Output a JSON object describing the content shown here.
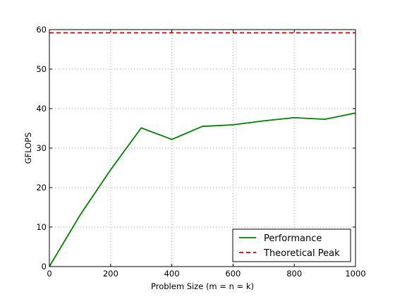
{
  "chart_data": {
    "type": "line",
    "title": "",
    "xlabel": "Problem Size (m = n = k)",
    "ylabel": "GFLOPS",
    "xlim": [
      0,
      1000
    ],
    "ylim": [
      0,
      60
    ],
    "xticks": [
      0,
      200,
      400,
      600,
      800,
      1000
    ],
    "yticks": [
      0,
      10,
      20,
      30,
      40,
      50,
      60
    ],
    "grid": true,
    "legend_position": "bottom-right",
    "series": [
      {
        "name": "Performance",
        "color": "#008000",
        "style": "solid",
        "x": [
          0,
          100,
          200,
          300,
          400,
          500,
          600,
          700,
          800,
          900,
          1000
        ],
        "y": [
          0,
          13,
          24.5,
          35.1,
          32.2,
          35.5,
          35.9,
          36.9,
          37.7,
          37.3,
          38.9
        ]
      },
      {
        "name": "Theoretical Peak",
        "color": "#cc0000",
        "style": "dashed",
        "x": [
          0,
          1000
        ],
        "y": [
          59.2,
          59.2
        ]
      }
    ]
  }
}
